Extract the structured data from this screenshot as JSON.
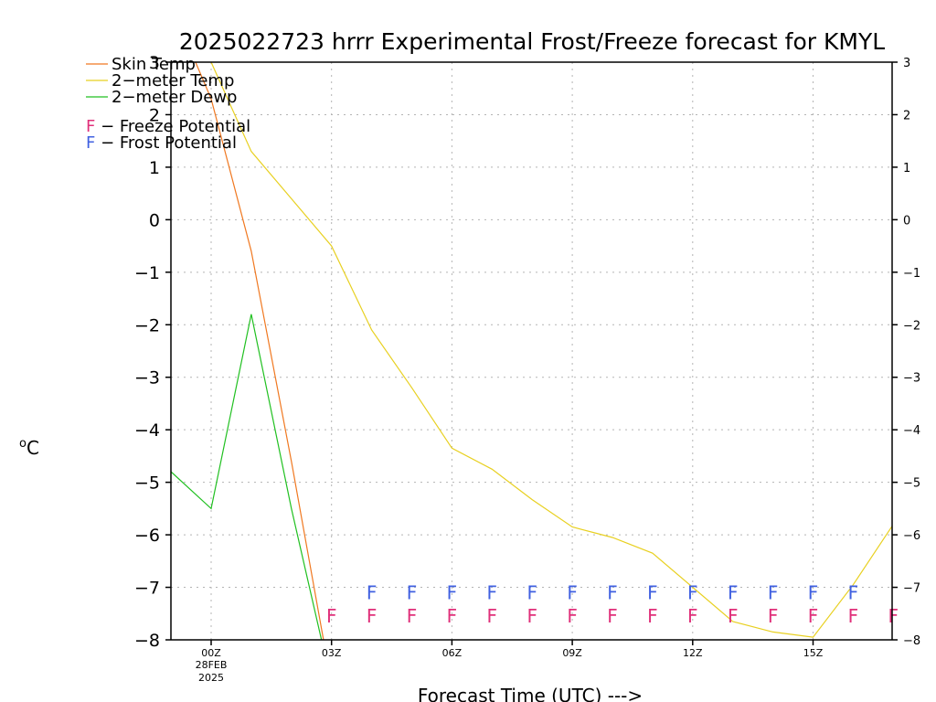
{
  "chart_data": {
    "type": "line",
    "title": "2025022723 hrrr Experimental Frost/Freeze forecast for KMYL",
    "xlabel": "Forecast Time (UTC) --->",
    "ylabel": "oC",
    "ylim": [
      -8,
      3
    ],
    "xlim": [
      -1,
      18
    ],
    "yticks": [
      3,
      2,
      1,
      0,
      -1,
      -2,
      -3,
      -4,
      -5,
      -6,
      -7,
      -8
    ],
    "yticks_left": [
      "3",
      "2",
      "1",
      "0",
      "−1",
      "−2",
      "−3",
      "−4",
      "−5",
      "−6",
      "−7",
      "−8"
    ],
    "yticks_right": [
      "3",
      "2",
      "1",
      "0",
      "−1",
      "−2",
      "−3",
      "−4",
      "−5",
      "−6",
      "−7",
      "−8"
    ],
    "xticks": [
      {
        "x": 0,
        "label": "00Z",
        "sub1": "28FEB",
        "sub2": "2025"
      },
      {
        "x": 3,
        "label": "03Z"
      },
      {
        "x": 6,
        "label": "06Z"
      },
      {
        "x": 9,
        "label": "09Z"
      },
      {
        "x": 12,
        "label": "12Z"
      },
      {
        "x": 15,
        "label": "15Z"
      }
    ],
    "grid": true,
    "colors": {
      "skin": "#f07820",
      "temp": "#e8d020",
      "dewp": "#20c020",
      "freeze": "#e0307a",
      "frost": "#4060e0",
      "axis": "#000000",
      "grid": "#b4b4b4"
    },
    "series": [
      {
        "name": "Skin Temp",
        "key": "skin",
        "x": [
          -1,
          0,
          1,
          2,
          2.8
        ],
        "y": [
          4.1,
          2.3,
          -0.6,
          -4.6,
          -8.0
        ]
      },
      {
        "name": "2−meter Temp",
        "key": "temp",
        "x": [
          -1,
          0,
          1,
          2,
          3,
          4,
          5,
          6,
          7,
          8,
          9,
          10,
          11,
          12,
          13,
          14,
          15,
          16,
          17
        ],
        "y": [
          4.0,
          3.0,
          1.3,
          0.4,
          -0.5,
          -2.1,
          -3.2,
          -4.35,
          -4.75,
          -5.33,
          -5.85,
          -6.05,
          -6.35,
          -7.0,
          -7.65,
          -7.85,
          -7.95,
          -6.95,
          -5.8
        ]
      },
      {
        "name": "2−meter Dewp",
        "key": "dewp",
        "x": [
          -1,
          0,
          1,
          2,
          2.75
        ],
        "y": [
          -4.8,
          -5.5,
          -1.8,
          -5.5,
          -8.0
        ]
      }
    ],
    "legend_labels": {
      "skin": "Skin Temp",
      "temp": "2−meter Temp",
      "dewp": "2−meter Dewp",
      "freeze_letter": "F",
      "freeze_text": " − Freeze Potential",
      "frost_letter": "F",
      "frost_text": " − Frost Potential"
    },
    "freeze_marks": {
      "letter": "F",
      "x": [
        3,
        4,
        5,
        6,
        7,
        8,
        9,
        10,
        11,
        12,
        13,
        14,
        15,
        16,
        17
      ],
      "y": -7.55
    },
    "frost_marks": {
      "letter": "F",
      "x": [
        4,
        5,
        6,
        7,
        8,
        9,
        10,
        11,
        12,
        13,
        14,
        15,
        16
      ],
      "y": -7.1
    }
  }
}
